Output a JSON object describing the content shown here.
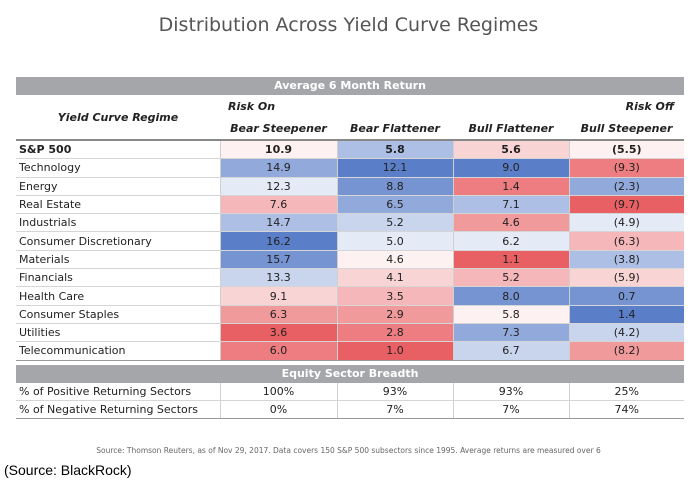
{
  "title": "Distribution Across Yield Curve Regimes",
  "band_return": "Average 6 Month Return",
  "band_breadth": "Equity Sector Breadth",
  "header": {
    "regime_label": "Yield Curve Regime",
    "risk_on": "Risk On",
    "risk_off": "Risk Off",
    "columns": [
      "Bear Steepener",
      "Bear Flattener",
      "Bull Flattener",
      "Bull Steepener"
    ]
  },
  "colors": {
    "positive": "#5b7ec9",
    "negative": "#e8585c",
    "band": "#a4a6aa",
    "arrow_blue": "#6a8fd8",
    "arrow_red": "#e06a70"
  },
  "chart_data": {
    "type": "table",
    "columns": [
      "Bear Steepener",
      "Bear Flattener",
      "Bull Flattener",
      "Bull Steepener"
    ],
    "rows": [
      {
        "label": "S&P 500",
        "values": [
          10.9,
          5.8,
          5.6,
          -5.5
        ],
        "display": [
          "10.9",
          "5.8",
          "5.6",
          "(5.5)"
        ]
      },
      {
        "label": "Technology",
        "values": [
          14.9,
          12.1,
          9.0,
          -9.3
        ],
        "display": [
          "14.9",
          "12.1",
          "9.0",
          "(9.3)"
        ]
      },
      {
        "label": "Energy",
        "values": [
          12.3,
          8.8,
          1.4,
          -2.3
        ],
        "display": [
          "12.3",
          "8.8",
          "1.4",
          "(2.3)"
        ]
      },
      {
        "label": "Real Estate",
        "values": [
          7.6,
          6.5,
          7.1,
          -9.7
        ],
        "display": [
          "7.6",
          "6.5",
          "7.1",
          "(9.7)"
        ]
      },
      {
        "label": "Industrials",
        "values": [
          14.7,
          5.2,
          4.6,
          -4.9
        ],
        "display": [
          "14.7",
          "5.2",
          "4.6",
          "(4.9)"
        ]
      },
      {
        "label": "Consumer Discretionary",
        "values": [
          16.2,
          5.0,
          6.2,
          -6.3
        ],
        "display": [
          "16.2",
          "5.0",
          "6.2",
          "(6.3)"
        ]
      },
      {
        "label": "Materials",
        "values": [
          15.7,
          4.6,
          1.1,
          -3.8
        ],
        "display": [
          "15.7",
          "4.6",
          "1.1",
          "(3.8)"
        ]
      },
      {
        "label": "Financials",
        "values": [
          13.3,
          4.1,
          5.2,
          -5.9
        ],
        "display": [
          "13.3",
          "4.1",
          "5.2",
          "(5.9)"
        ]
      },
      {
        "label": "Health Care",
        "values": [
          9.1,
          3.5,
          8.0,
          0.7
        ],
        "display": [
          "9.1",
          "3.5",
          "8.0",
          "0.7"
        ]
      },
      {
        "label": "Consumer Staples",
        "values": [
          6.3,
          2.9,
          5.8,
          1.4
        ],
        "display": [
          "6.3",
          "2.9",
          "5.8",
          "1.4"
        ]
      },
      {
        "label": "Utilities",
        "values": [
          3.6,
          2.8,
          7.3,
          -4.2
        ],
        "display": [
          "3.6",
          "2.8",
          "7.3",
          "(4.2)"
        ]
      },
      {
        "label": "Telecommunication",
        "values": [
          6.0,
          1.0,
          6.7,
          -8.2
        ],
        "display": [
          "6.0",
          "1.0",
          "6.7",
          "(8.2)"
        ]
      }
    ],
    "breadth": [
      {
        "label": "% of Positive Returning Sectors",
        "values": [
          "100%",
          "93%",
          "93%",
          "25%"
        ]
      },
      {
        "label": "% of Negative Returning Sectors",
        "values": [
          "0%",
          "7%",
          "7%",
          "74%"
        ]
      }
    ]
  },
  "footnote": "Source: Thomson Reuters, as of Nov 29, 2017. Data covers 150 S&P 500 subsectors since 1995. Average returns are measured over 6",
  "source_label": "(Source: BlackRock)"
}
